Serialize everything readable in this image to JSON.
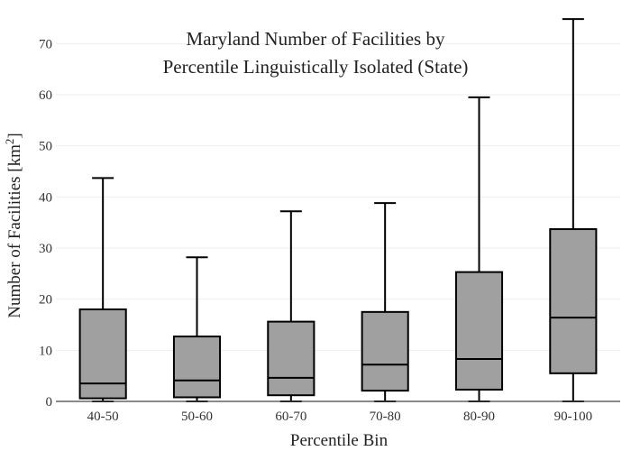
{
  "chart_data": {
    "type": "box",
    "title_lines": [
      "Maryland Number of Facilities by",
      "Percentile Linguistically Isolated (State)"
    ],
    "xlabel": "Percentile Bin",
    "ylabel_main": "Number of Facilities  [km",
    "ylabel_sup": "2",
    "ylabel_end": "]",
    "ylim": [
      0,
      75
    ],
    "yticks": [
      0,
      10,
      20,
      30,
      40,
      50,
      60,
      70
    ],
    "grid": true,
    "box_color": "#a0a0a0",
    "categories": [
      "40-50",
      "50-60",
      "60-70",
      "70-80",
      "80-90",
      "90-100"
    ],
    "boxes": [
      {
        "min": 0,
        "q1": 0.6,
        "median": 3.5,
        "q3": 18.0,
        "max": 43.7
      },
      {
        "min": 0,
        "q1": 0.8,
        "median": 4.1,
        "q3": 12.7,
        "max": 28.2
      },
      {
        "min": 0,
        "q1": 1.2,
        "median": 4.6,
        "q3": 15.6,
        "max": 37.2
      },
      {
        "min": 0,
        "q1": 2.1,
        "median": 7.2,
        "q3": 17.5,
        "max": 38.8
      },
      {
        "min": 0,
        "q1": 2.3,
        "median": 8.3,
        "q3": 25.3,
        "max": 59.5
      },
      {
        "min": 0,
        "q1": 5.5,
        "median": 16.4,
        "q3": 33.7,
        "max": 74.8
      }
    ]
  }
}
